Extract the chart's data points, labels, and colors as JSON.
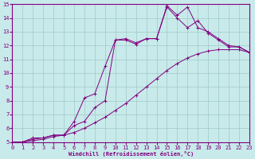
{
  "xlabel": "Windchill (Refroidissement éolien,°C)",
  "bg_color": "#c8eaea",
  "line_color": "#800080",
  "grid_color": "#a0c8c8",
  "xlim": [
    0,
    23
  ],
  "ylim": [
    5,
    15
  ],
  "xticks": [
    0,
    1,
    2,
    3,
    4,
    5,
    6,
    7,
    8,
    9,
    10,
    11,
    12,
    13,
    14,
    15,
    16,
    17,
    18,
    19,
    20,
    21,
    22,
    23
  ],
  "yticks": [
    5,
    6,
    7,
    8,
    9,
    10,
    11,
    12,
    13,
    14,
    15
  ],
  "line1_x": [
    0,
    1,
    2,
    3,
    4,
    5,
    6,
    7,
    8,
    9,
    10,
    11,
    12,
    13,
    14,
    15,
    16,
    17,
    18,
    19,
    20,
    21,
    22,
    23
  ],
  "line1_y": [
    5.0,
    5.0,
    5.1,
    5.2,
    5.4,
    5.5,
    5.7,
    6.0,
    6.4,
    6.8,
    7.3,
    7.8,
    8.4,
    9.0,
    9.6,
    10.2,
    10.7,
    11.1,
    11.4,
    11.6,
    11.7,
    11.7,
    11.7,
    11.5
  ],
  "line2_x": [
    0,
    1,
    2,
    3,
    4,
    5,
    6,
    7,
    8,
    9,
    10,
    11,
    12,
    13,
    14,
    15,
    16,
    17,
    18,
    19,
    20,
    21,
    22,
    23
  ],
  "line2_y": [
    5.0,
    5.0,
    5.2,
    5.3,
    5.5,
    5.5,
    6.2,
    6.5,
    7.5,
    8.0,
    12.4,
    12.5,
    12.2,
    12.5,
    12.5,
    14.9,
    14.2,
    14.8,
    13.3,
    13.0,
    12.5,
    12.0,
    11.9,
    11.5
  ],
  "line3_x": [
    0,
    1,
    2,
    3,
    4,
    5,
    6,
    7,
    8,
    9,
    10,
    11,
    12,
    13,
    14,
    15,
    16,
    17,
    18,
    19,
    20,
    21,
    22,
    23
  ],
  "line3_y": [
    5.0,
    5.0,
    5.3,
    5.3,
    5.5,
    5.5,
    6.5,
    8.2,
    8.5,
    10.5,
    12.4,
    12.4,
    12.1,
    12.5,
    12.5,
    14.8,
    14.0,
    13.3,
    13.8,
    12.9,
    12.4,
    11.9,
    11.9,
    11.5
  ]
}
